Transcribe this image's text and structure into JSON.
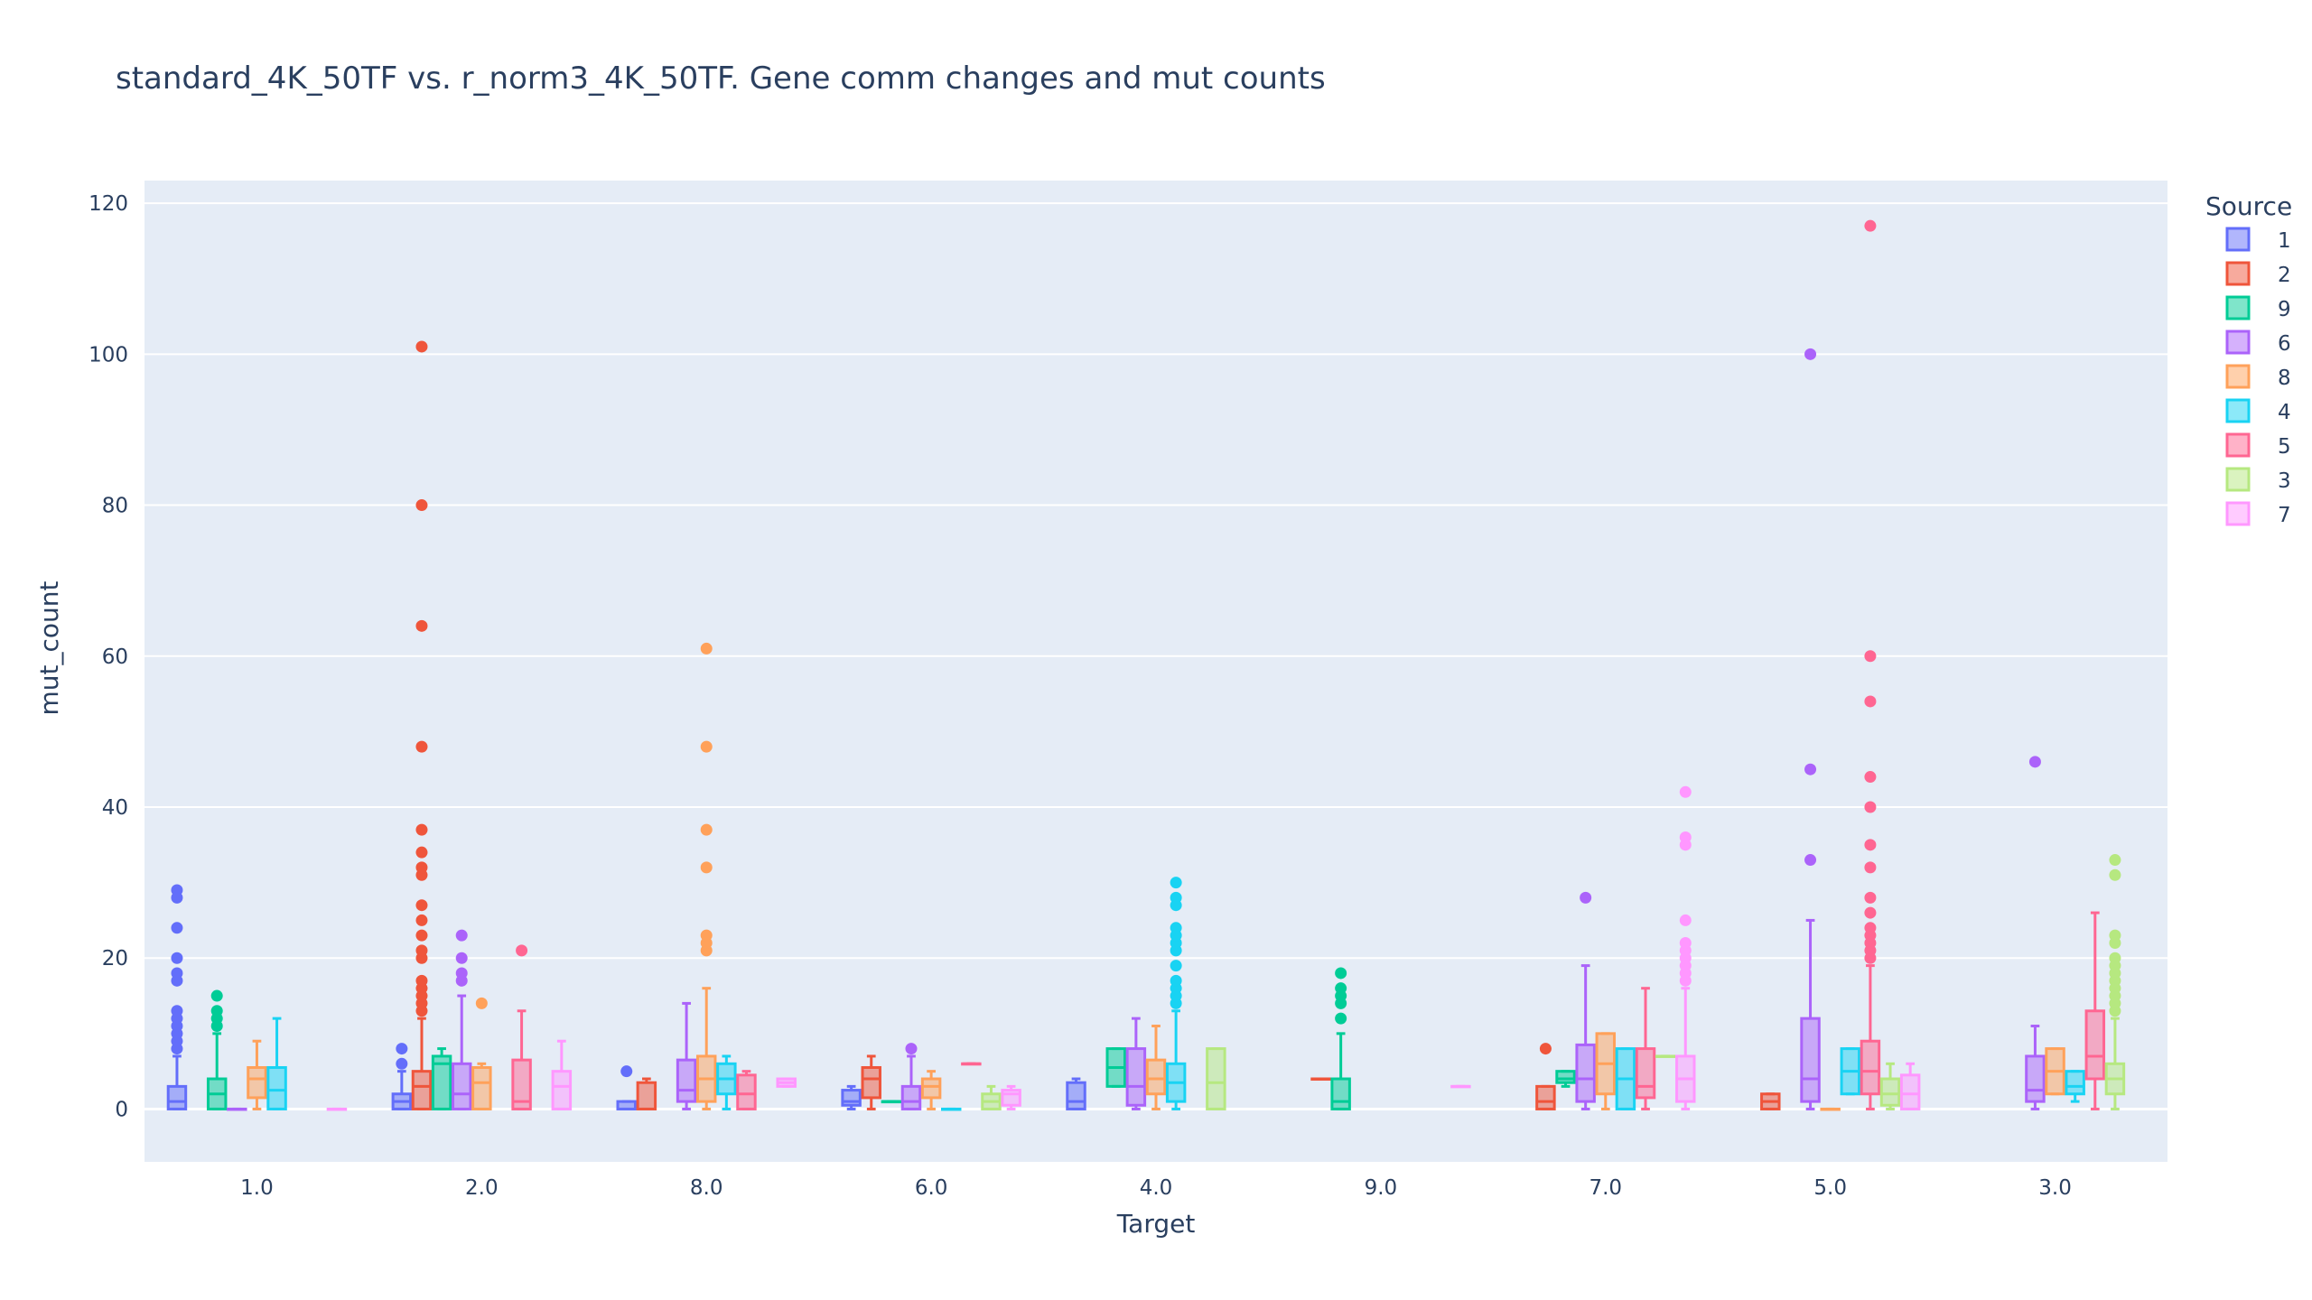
{
  "chart_data": {
    "type": "box",
    "title": "standard_4K_50TF vs. r_norm3_4K_50TF. Gene comm changes and mut counts",
    "xlabel": "Target",
    "ylabel": "mut_count",
    "ylim": [
      -7,
      123
    ],
    "yticks": [
      0,
      20,
      40,
      60,
      80,
      100,
      120
    ],
    "grid": true,
    "legend_position": "right",
    "legend_title": "Source",
    "categories": [
      "1.0",
      "2.0",
      "8.0",
      "6.0",
      "4.0",
      "9.0",
      "7.0",
      "5.0",
      "3.0"
    ],
    "series": [
      {
        "name": "1",
        "color": "#636efa",
        "boxes": {
          "1.0": {
            "lf": 0,
            "q1": 0,
            "med": 1,
            "q3": 3,
            "uf": 7,
            "out": [
              8,
              9,
              10,
              11,
              12,
              13,
              17,
              18,
              20,
              24,
              28,
              29
            ]
          },
          "2.0": {
            "lf": 0,
            "q1": 0,
            "med": 1,
            "q3": 2,
            "uf": 5,
            "out": [
              6,
              8
            ]
          },
          "8.0": {
            "lf": 0,
            "q1": 0,
            "med": 0,
            "q3": 1,
            "uf": 1,
            "out": [
              5
            ]
          },
          "6.0": {
            "lf": 0,
            "q1": 0.5,
            "med": 1,
            "q3": 2.5,
            "uf": 3,
            "out": []
          },
          "4.0": {
            "lf": 0,
            "q1": 0,
            "med": 1,
            "q3": 3.5,
            "uf": 4,
            "out": []
          }
        }
      },
      {
        "name": "2",
        "color": "#ef553b",
        "boxes": {
          "2.0": {
            "lf": 0,
            "q1": 0,
            "med": 3,
            "q3": 5,
            "uf": 12,
            "out": [
              13,
              14,
              15,
              16,
              17,
              20,
              21,
              23,
              25,
              27,
              31,
              32,
              34,
              37,
              48,
              64,
              80,
              101
            ]
          },
          "8.0": {
            "lf": 0,
            "q1": 0,
            "med": 0,
            "q3": 3.5,
            "uf": 4,
            "out": []
          },
          "6.0": {
            "lf": 0,
            "q1": 1.5,
            "med": 4,
            "q3": 5.5,
            "uf": 7,
            "out": []
          },
          "9.0": {
            "lf": 4,
            "q1": 4,
            "med": 4,
            "q3": 4,
            "uf": 4,
            "out": []
          },
          "7.0": {
            "lf": 0,
            "q1": 0,
            "med": 1,
            "q3": 3,
            "uf": 3,
            "out": [
              8
            ]
          },
          "5.0": {
            "lf": 0,
            "q1": 0,
            "med": 1,
            "q3": 2,
            "uf": 2,
            "out": []
          }
        }
      },
      {
        "name": "9",
        "color": "#00cc96",
        "boxes": {
          "1.0": {
            "lf": 0,
            "q1": 0,
            "med": 2,
            "q3": 4,
            "uf": 10,
            "out": [
              11,
              12,
              13,
              15
            ]
          },
          "2.0": {
            "lf": 0,
            "q1": 0,
            "med": 6,
            "q3": 7,
            "uf": 8,
            "out": []
          },
          "6.0": {
            "lf": 1,
            "q1": 1,
            "med": 1,
            "q3": 1,
            "uf": 1,
            "out": []
          },
          "4.0": {
            "lf": 3,
            "q1": 3,
            "med": 5.5,
            "q3": 8,
            "uf": 8,
            "out": []
          },
          "9.0": {
            "lf": 0,
            "q1": 0,
            "med": 1,
            "q3": 4,
            "uf": 10,
            "out": [
              12,
              14,
              15,
              16,
              18
            ]
          },
          "7.0": {
            "lf": 3,
            "q1": 3.5,
            "med": 4,
            "q3": 5,
            "uf": 5,
            "out": []
          }
        }
      },
      {
        "name": "6",
        "color": "#ab63fa",
        "boxes": {
          "1.0": {
            "lf": 0,
            "q1": 0,
            "med": 0,
            "q3": 0,
            "uf": 0,
            "out": []
          },
          "2.0": {
            "lf": 0,
            "q1": 0,
            "med": 2,
            "q3": 6,
            "uf": 15,
            "out": [
              17,
              18,
              20,
              23
            ]
          },
          "8.0": {
            "lf": 0,
            "q1": 1,
            "med": 2.5,
            "q3": 6.5,
            "uf": 14,
            "out": []
          },
          "6.0": {
            "lf": 0,
            "q1": 0,
            "med": 1,
            "q3": 3,
            "uf": 7,
            "out": [
              8
            ]
          },
          "4.0": {
            "lf": 0,
            "q1": 0.5,
            "med": 3,
            "q3": 8,
            "uf": 12,
            "out": []
          },
          "7.0": {
            "lf": 0,
            "q1": 1,
            "med": 4,
            "q3": 8.5,
            "uf": 19,
            "out": [
              28
            ]
          },
          "5.0": {
            "lf": 0,
            "q1": 1,
            "med": 4,
            "q3": 12,
            "uf": 25,
            "out": [
              33,
              45,
              100
            ]
          },
          "3.0": {
            "lf": 0,
            "q1": 1,
            "med": 2.5,
            "q3": 7,
            "uf": 11,
            "out": [
              46
            ]
          }
        }
      },
      {
        "name": "8",
        "color": "#ffa15a",
        "boxes": {
          "1.0": {
            "lf": 0,
            "q1": 1.5,
            "med": 4,
            "q3": 5.5,
            "uf": 9,
            "out": []
          },
          "2.0": {
            "lf": 0,
            "q1": 0,
            "med": 3.5,
            "q3": 5.5,
            "uf": 6,
            "out": [
              14
            ]
          },
          "8.0": {
            "lf": 0,
            "q1": 1,
            "med": 4,
            "q3": 7,
            "uf": 16,
            "out": [
              21,
              22,
              23,
              32,
              37,
              48,
              61
            ]
          },
          "6.0": {
            "lf": 0,
            "q1": 1.5,
            "med": 3,
            "q3": 4,
            "uf": 5,
            "out": []
          },
          "4.0": {
            "lf": 0,
            "q1": 2,
            "med": 4,
            "q3": 6.5,
            "uf": 11,
            "out": []
          },
          "7.0": {
            "lf": 0,
            "q1": 2,
            "med": 6,
            "q3": 10,
            "uf": 10,
            "out": []
          },
          "5.0": {
            "lf": 0,
            "q1": 0,
            "med": 0,
            "q3": 0,
            "uf": 0,
            "out": []
          },
          "3.0": {
            "lf": 2,
            "q1": 2,
            "med": 5,
            "q3": 8,
            "uf": 8,
            "out": []
          }
        }
      },
      {
        "name": "4",
        "color": "#19d3f3",
        "boxes": {
          "1.0": {
            "lf": 0,
            "q1": 0,
            "med": 2.5,
            "q3": 5.5,
            "uf": 12,
            "out": []
          },
          "8.0": {
            "lf": 0,
            "q1": 2,
            "med": 4,
            "q3": 6,
            "uf": 7,
            "out": []
          },
          "6.0": {
            "lf": 0,
            "q1": 0,
            "med": 0,
            "q3": 0,
            "uf": 0,
            "out": []
          },
          "4.0": {
            "lf": 0,
            "q1": 1,
            "med": 3.5,
            "q3": 6,
            "uf": 13,
            "out": [
              14,
              15,
              16,
              17,
              19,
              21,
              22,
              23,
              24,
              27,
              28,
              30
            ]
          },
          "7.0": {
            "lf": 0,
            "q1": 0,
            "med": 4,
            "q3": 8,
            "uf": 8,
            "out": []
          },
          "5.0": {
            "lf": 2,
            "q1": 2,
            "med": 5,
            "q3": 8,
            "uf": 8,
            "out": []
          },
          "3.0": {
            "lf": 1,
            "q1": 2,
            "med": 3,
            "q3": 5,
            "uf": 5,
            "out": []
          }
        }
      },
      {
        "name": "5",
        "color": "#ff6692",
        "boxes": {
          "2.0": {
            "lf": 0,
            "q1": 0,
            "med": 1,
            "q3": 6.5,
            "uf": 13,
            "out": [
              21
            ]
          },
          "8.0": {
            "lf": 0,
            "q1": 0,
            "med": 2,
            "q3": 4.5,
            "uf": 5,
            "out": []
          },
          "6.0": {
            "lf": 6,
            "q1": 6,
            "med": 6,
            "q3": 6,
            "uf": 6,
            "out": []
          },
          "7.0": {
            "lf": 0,
            "q1": 1.5,
            "med": 3,
            "q3": 8,
            "uf": 16,
            "out": []
          },
          "5.0": {
            "lf": 0,
            "q1": 2,
            "med": 5,
            "q3": 9,
            "uf": 19,
            "out": [
              20,
              21,
              22,
              23,
              24,
              26,
              28,
              32,
              35,
              40,
              44,
              54,
              60,
              117
            ]
          },
          "3.0": {
            "lf": 0,
            "q1": 4,
            "med": 7,
            "q3": 13,
            "uf": 26,
            "out": []
          }
        }
      },
      {
        "name": "3",
        "color": "#b6e880",
        "boxes": {
          "6.0": {
            "lf": 0,
            "q1": 0,
            "med": 1,
            "q3": 2,
            "uf": 3,
            "out": []
          },
          "4.0": {
            "lf": 0,
            "q1": 0,
            "med": 3.5,
            "q3": 8,
            "uf": 8,
            "out": []
          },
          "7.0": {
            "lf": 7,
            "q1": 7,
            "med": 7,
            "q3": 7,
            "uf": 7,
            "out": []
          },
          "5.0": {
            "lf": 0,
            "q1": 0.5,
            "med": 2,
            "q3": 4,
            "uf": 6,
            "out": []
          },
          "3.0": {
            "lf": 0,
            "q1": 2,
            "med": 4,
            "q3": 6,
            "uf": 12,
            "out": [
              13,
              14,
              15,
              16,
              17,
              18,
              19,
              20,
              22,
              23,
              31,
              33
            ]
          }
        }
      },
      {
        "name": "7",
        "color": "#ff97ff",
        "boxes": {
          "1.0": {
            "lf": 0,
            "q1": 0,
            "med": 0,
            "q3": 0,
            "uf": 0,
            "out": []
          },
          "2.0": {
            "lf": 0,
            "q1": 0,
            "med": 3,
            "q3": 5,
            "uf": 9,
            "out": []
          },
          "8.0": {
            "lf": 3,
            "q1": 3,
            "med": 3.5,
            "q3": 4,
            "uf": 4,
            "out": []
          },
          "6.0": {
            "lf": 0,
            "q1": 0.5,
            "med": 2,
            "q3": 2.5,
            "uf": 3,
            "out": []
          },
          "9.0": {
            "lf": 3,
            "q1": 3,
            "med": 3,
            "q3": 3,
            "uf": 3,
            "out": []
          },
          "7.0": {
            "lf": 0,
            "q1": 1,
            "med": 4,
            "q3": 7,
            "uf": 16,
            "out": [
              17,
              18,
              19,
              20,
              21,
              22,
              25,
              35,
              36,
              42
            ]
          },
          "5.0": {
            "lf": 0,
            "q1": 0,
            "med": 2,
            "q3": 4.5,
            "uf": 6,
            "out": []
          }
        }
      }
    ]
  }
}
